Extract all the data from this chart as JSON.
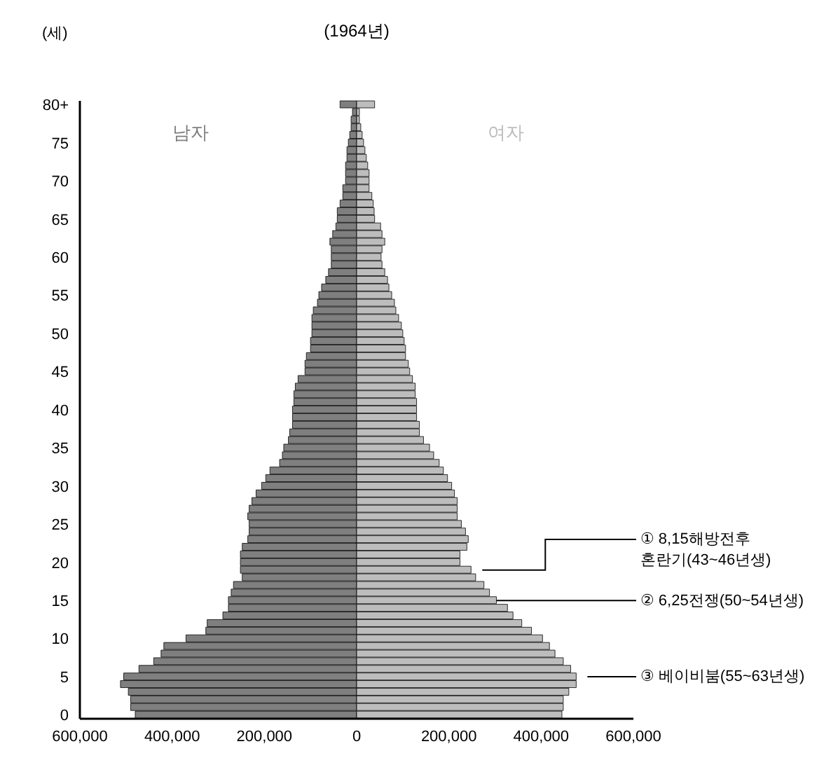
{
  "chart_data": {
    "type": "bar",
    "orientation": "horizontal",
    "stacked": true,
    "title": "(1964년)",
    "ylabel": "(세)",
    "categories": [
      "80+",
      null,
      null,
      null,
      null,
      "75",
      null,
      null,
      null,
      null,
      "70",
      null,
      null,
      null,
      null,
      "65",
      null,
      null,
      null,
      null,
      "60",
      null,
      null,
      null,
      null,
      "55",
      null,
      null,
      null,
      null,
      "50",
      null,
      null,
      null,
      null,
      "45",
      null,
      null,
      null,
      null,
      "40",
      null,
      null,
      null,
      null,
      "35",
      null,
      null,
      null,
      null,
      "30",
      null,
      null,
      null,
      null,
      "25",
      null,
      null,
      null,
      null,
      "20",
      null,
      null,
      null,
      null,
      "15",
      null,
      null,
      null,
      null,
      "10",
      null,
      null,
      null,
      null,
      "5",
      null,
      null,
      null,
      null,
      "0"
    ],
    "series": [
      {
        "name": "남자",
        "color": "#7f7f7f",
        "values": [
          -36000,
          -9000,
          -12000,
          -12000,
          -15000,
          -18000,
          -21000,
          -21000,
          -24000,
          -24000,
          -24000,
          -30000,
          -30000,
          -36000,
          -42000,
          -42000,
          -45000,
          -52000,
          -58000,
          -55000,
          -55000,
          -55000,
          -61000,
          -67000,
          -76000,
          -82000,
          -85000,
          -94000,
          -97000,
          -97000,
          -97000,
          -100000,
          -100000,
          -109000,
          -112000,
          -112000,
          -127000,
          -133000,
          -136000,
          -136000,
          -139000,
          -139000,
          -139000,
          -145000,
          -148000,
          -158000,
          -161000,
          -167000,
          -188000,
          -197000,
          -206000,
          -218000,
          -227000,
          -233000,
          -236000,
          -233000,
          -233000,
          -236000,
          -248000,
          -252000,
          -252000,
          -252000,
          -248000,
          -267000,
          -272000,
          -278000,
          -278000,
          -290000,
          -324000,
          -327000,
          -370000,
          -418000,
          -424000,
          -440000,
          -472000,
          -505000,
          -512000,
          -495000,
          -490000,
          -490000,
          -480000
        ]
      },
      {
        "name": "여자",
        "color": "#bdbdbd",
        "values": [
          39000,
          6000,
          6000,
          9000,
          12000,
          15000,
          18000,
          21000,
          24000,
          27000,
          27000,
          27000,
          33000,
          36000,
          38000,
          39000,
          52000,
          55000,
          61000,
          55000,
          53000,
          55000,
          61000,
          67000,
          70000,
          76000,
          82000,
          85000,
          91000,
          97000,
          100000,
          103000,
          106000,
          106000,
          112000,
          115000,
          121000,
          127000,
          127000,
          130000,
          130000,
          130000,
          136000,
          136000,
          145000,
          158000,
          167000,
          179000,
          188000,
          197000,
          206000,
          212000,
          218000,
          218000,
          218000,
          227000,
          236000,
          242000,
          239000,
          224000,
          224000,
          248000,
          258000,
          276000,
          288000,
          303000,
          327000,
          339000,
          358000,
          379000,
          403000,
          418000,
          430000,
          448000,
          464000,
          476000,
          476000,
          460000,
          448000,
          448000,
          445000
        ]
      }
    ],
    "xlim": [
      -600000,
      600000
    ],
    "xticks": [
      {
        "value": -600000,
        "label": "600,000"
      },
      {
        "value": -400000,
        "label": "400,000"
      },
      {
        "value": -200000,
        "label": "200,000"
      },
      0,
      {
        "value": 200000,
        "label": "200,000"
      },
      {
        "value": 400000,
        "label": "400,000"
      },
      {
        "value": 600000,
        "label": "600,000"
      }
    ],
    "annotations": [
      "① 8,15해방전후\n혼란기(43~46년생)",
      {
        "text": "② 6,25전쟁(50~54년생)",
        "x": 303000,
        "y": "15"
      },
      "③ 베이비붐(55~63년생)"
    ]
  }
}
